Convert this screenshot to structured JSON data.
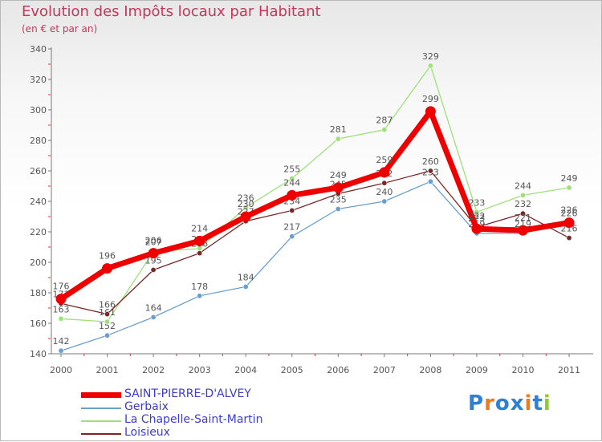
{
  "chart_data": {
    "type": "line",
    "title": "Evolution des Impôts locaux par Habitant",
    "subtitle": "(en € et par an)",
    "xlabel": "",
    "ylabel": "",
    "ylim": [
      140,
      340
    ],
    "yticks": [
      140,
      160,
      180,
      200,
      220,
      240,
      260,
      280,
      300,
      320,
      340
    ],
    "categories": [
      "2000",
      "2001",
      "2002",
      "2003",
      "2004",
      "2005",
      "2006",
      "2007",
      "2008",
      "2009",
      "2010",
      "2011"
    ],
    "grid": false,
    "legend_position": "bottom-left",
    "series": [
      {
        "name": "Gerbaix",
        "color": "#6a9fd0",
        "values": [
          142,
          152,
          164,
          178,
          184,
          217,
          235,
          240,
          253,
          219,
          219,
          226
        ],
        "labels": [
          "142",
          "152",
          "164",
          "178",
          "184",
          "217",
          "235",
          "240",
          "253",
          "219",
          "219",
          "226"
        ]
      },
      {
        "name": "La Chapelle-Saint-Martin",
        "color": "#9ee07a",
        "values": [
          163,
          161,
          207,
          209,
          236,
          255,
          281,
          287,
          329,
          233,
          244,
          249
        ],
        "labels": [
          "163",
          "161",
          "207",
          "209",
          "236",
          "255",
          "281",
          "287",
          "329",
          "233",
          "244",
          "249"
        ]
      },
      {
        "name": "Loisieux",
        "color": "#7a2727",
        "values": [
          173,
          166,
          195,
          206,
          227,
          234,
          245,
          252,
          260,
          223,
          232,
          216
        ],
        "labels": [
          "173",
          "166",
          "195",
          "206",
          "227",
          "234",
          "245",
          "252",
          "260",
          "223",
          "232",
          "216"
        ]
      },
      {
        "name": "SAINT-PIERRE-D'ALVEY",
        "color": "#ee0000",
        "values": [
          176,
          196,
          206,
          214,
          230,
          244,
          249,
          259,
          299,
          222,
          221,
          226
        ],
        "labels": [
          "176",
          "196",
          "206",
          "214",
          "230",
          "244",
          "249",
          "259",
          "299",
          "222",
          "221",
          "226"
        ]
      }
    ],
    "legend": [
      {
        "name": "SAINT-PIERRE-D'ALVEY",
        "color": "#ee0000"
      },
      {
        "name": "Gerbaix",
        "color": "#6a9fd0"
      },
      {
        "name": "La Chapelle-Saint-Martin",
        "color": "#9ee07a"
      },
      {
        "name": "Loisieux",
        "color": "#7a2727"
      }
    ]
  },
  "brand": {
    "text": "Proxiti",
    "letter_colors": [
      "#2e7fd8",
      "#f07a1a",
      "#2e7fd8",
      "#2e7fd8",
      "#f07a1a",
      "#2e7fd8",
      "#8fcc2a"
    ]
  }
}
